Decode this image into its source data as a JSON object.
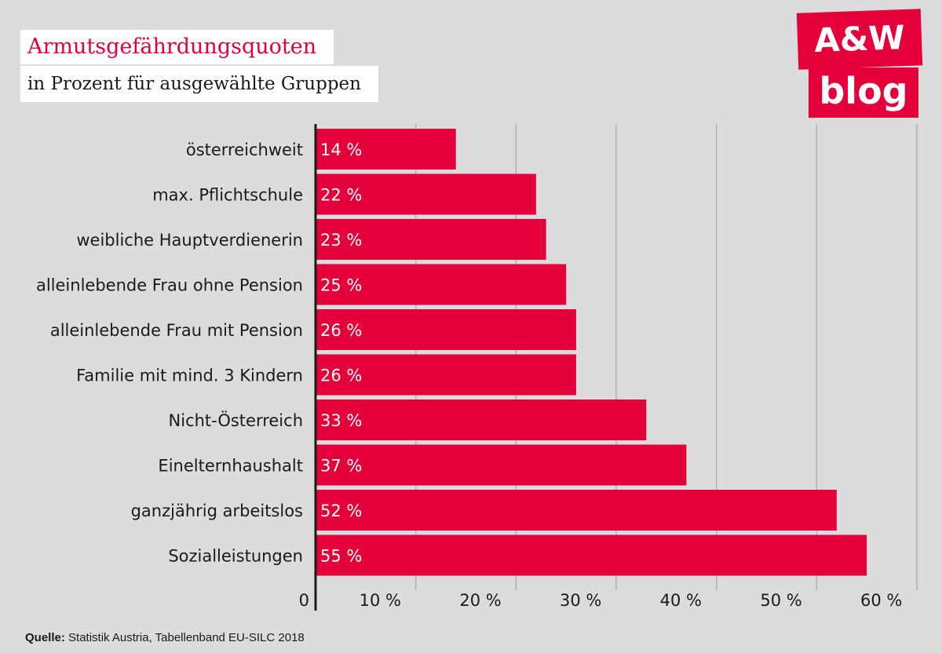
{
  "header": {
    "title": "Armutsgefährdungsquoten",
    "subtitle": "in Prozent für ausgewählte Gruppen"
  },
  "logo": {
    "line1": "A&W",
    "line2": "blog"
  },
  "source": {
    "label": "Quelle:",
    "text": " Statistik Austria, Tabellenband EU-SILC 2018"
  },
  "colors": {
    "bar": "#e4003a",
    "background": "#dcdcdc",
    "grid": "#b0b0b0",
    "axis": "#1a1a1a"
  },
  "chart_data": {
    "type": "bar",
    "orientation": "horizontal",
    "title": "Armutsgefährdungsquoten",
    "subtitle": "in Prozent für ausgewählte Gruppen",
    "categories": [
      "österreichweit",
      "max. Pflichtschule",
      "weibliche Hauptverdienerin",
      "alleinlebende Frau ohne Pension",
      "alleinlebende Frau mit Pension",
      "Familie mit mind. 3 Kindern",
      "Nicht-Österreich",
      "Eineltern­haushalt",
      "ganzjährig arbeitslos",
      "Sozialleistungen"
    ],
    "values": [
      14,
      22,
      23,
      25,
      26,
      26,
      33,
      37,
      52,
      55
    ],
    "value_labels": [
      "14 %",
      "22 %",
      "23 %",
      "25 %",
      "26 %",
      "26 %",
      "33 %",
      "37 %",
      "52 %",
      "55 %"
    ],
    "xlim": [
      0,
      60
    ],
    "xticks": [
      0,
      10,
      20,
      30,
      40,
      50,
      60
    ],
    "xtick_labels": [
      "0",
      "10 %",
      "20 %",
      "30 %",
      "40 %",
      "50 %",
      "60 %"
    ],
    "grid": true
  }
}
